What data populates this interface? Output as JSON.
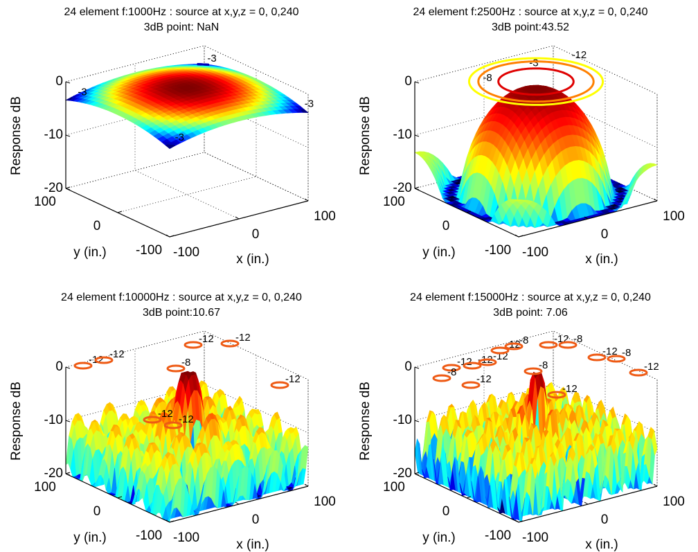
{
  "chart_data": [
    {
      "type": "surface",
      "title": "24 element f:1000Hz : source at x,y,z = 0, 0,240",
      "subtitle": "3dB point:  NaN",
      "xlabel": "x (in.)",
      "ylabel": "y (in.)",
      "zlabel": "Response dB",
      "xlim": [
        -100,
        100
      ],
      "ylim": [
        -100,
        100
      ],
      "zlim": [
        -20,
        0
      ],
      "xticks": [
        -100,
        0,
        100
      ],
      "yticks": [
        -100,
        0,
        100
      ],
      "zticks": [
        -20,
        -10,
        0
      ],
      "grid": true,
      "contour_labels": [
        -3,
        -3,
        -3,
        -3
      ]
    },
    {
      "type": "surface",
      "title": "24 element f:2500Hz : source at x,y,z = 0, 0,240",
      "subtitle": "3dB point:43.52",
      "xlabel": "x (in.)",
      "ylabel": "y (in.)",
      "zlabel": "Response dB",
      "xlim": [
        -100,
        100
      ],
      "ylim": [
        -100,
        100
      ],
      "zlim": [
        -20,
        0
      ],
      "xticks": [
        -100,
        0,
        100
      ],
      "yticks": [
        -100,
        0,
        100
      ],
      "zticks": [
        -20,
        -10,
        0
      ],
      "grid": true,
      "contour_labels": [
        -3,
        -8,
        -12
      ]
    },
    {
      "type": "surface",
      "title": "24 element f:10000Hz : source at x,y,z = 0, 0,240",
      "subtitle": "3dB point:10.67",
      "xlabel": "x (in.)",
      "ylabel": "y (in.)",
      "zlabel": "Response dB",
      "xlim": [
        -100,
        100
      ],
      "ylim": [
        -100,
        100
      ],
      "zlim": [
        -20,
        0
      ],
      "xticks": [
        -100,
        0,
        100
      ],
      "yticks": [
        -100,
        0,
        100
      ],
      "zticks": [
        -20,
        -10,
        0
      ],
      "grid": true,
      "contour_labels": [
        -12,
        -12,
        -12,
        -12,
        -8,
        -12,
        -12,
        -12
      ]
    },
    {
      "type": "surface",
      "title": "24 element f:15000Hz : source at x,y,z = 0, 0,240",
      "subtitle": "3dB point: 7.06",
      "xlabel": "x (in.)",
      "ylabel": "y (in.)",
      "zlabel": "Response dB",
      "xlim": [
        -100,
        100
      ],
      "ylim": [
        -100,
        100
      ],
      "zlim": [
        -20,
        0
      ],
      "xticks": [
        -100,
        0,
        100
      ],
      "yticks": [
        -100,
        0,
        100
      ],
      "zticks": [
        -20,
        -10,
        0
      ],
      "grid": true,
      "contour_labels": [
        -12,
        -12,
        -12,
        -12,
        -8,
        -12,
        -8,
        -12,
        -8,
        -12,
        -8,
        -12,
        -8,
        -12
      ]
    }
  ]
}
